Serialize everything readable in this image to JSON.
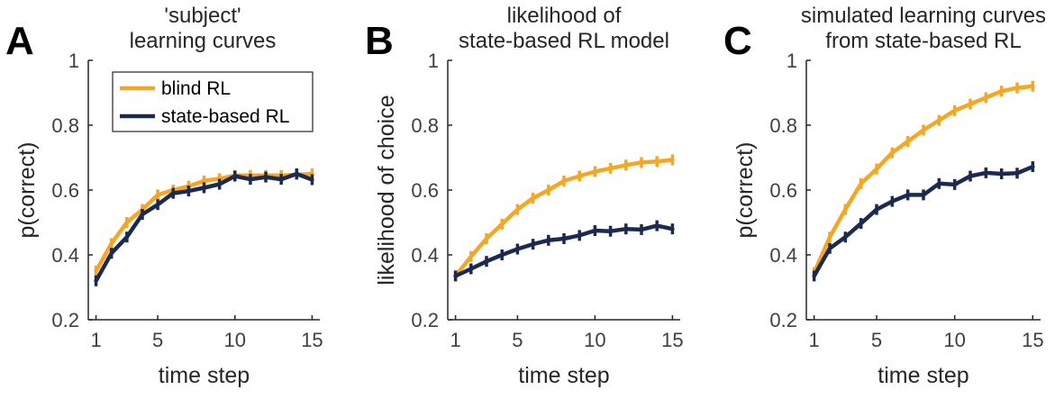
{
  "colors": {
    "blind_rl": "#F5A623",
    "state_based_rl": "#1B2A4E",
    "axis": "#262626",
    "tick": "#404040"
  },
  "chart_data": [
    {
      "type": "line",
      "panel_letter": "A",
      "title_lines": [
        "'subject'",
        "learning curves"
      ],
      "xlabel": "time step",
      "ylabel": "p(correct)",
      "xlim": [
        0.5,
        15.5
      ],
      "ylim": [
        0.2,
        1.0
      ],
      "xticks": [
        1,
        5,
        10,
        15
      ],
      "yticks": [
        0.2,
        0.4,
        0.6,
        0.8,
        1.0
      ],
      "ytick_labels": [
        "0.2",
        "0.4",
        "0.6",
        "0.8",
        "1"
      ],
      "grid": false,
      "legend": {
        "placement": "top-left",
        "entries": [
          "blind RL",
          "state-based RL"
        ]
      },
      "x": [
        1,
        2,
        3,
        4,
        5,
        6,
        7,
        8,
        9,
        10,
        11,
        12,
        13,
        14,
        15
      ],
      "series": [
        {
          "name": "blind RL",
          "color_key": "blind_rl",
          "values": [
            0.35,
            0.435,
            0.5,
            0.54,
            0.585,
            0.6,
            0.612,
            0.628,
            0.635,
            0.645,
            0.645,
            0.645,
            0.645,
            0.647,
            0.65
          ]
        },
        {
          "name": "state-based RL",
          "color_key": "state_based_rl",
          "values": [
            0.32,
            0.405,
            0.455,
            0.525,
            0.555,
            0.59,
            0.597,
            0.607,
            0.618,
            0.643,
            0.633,
            0.64,
            0.633,
            0.65,
            0.632
          ]
        }
      ]
    },
    {
      "type": "line",
      "panel_letter": "B",
      "title_lines": [
        "likelihood of",
        "state-based RL model"
      ],
      "xlabel": "time step",
      "ylabel": "likelihood of choice",
      "xlim": [
        0.5,
        15.5
      ],
      "ylim": [
        0.2,
        1.0
      ],
      "xticks": [
        1,
        5,
        10,
        15
      ],
      "yticks": [
        0.2,
        0.4,
        0.6,
        0.8,
        1.0
      ],
      "ytick_labels": [
        "0.2",
        "0.4",
        "0.6",
        "0.8",
        "1"
      ],
      "grid": false,
      "x": [
        1,
        2,
        3,
        4,
        5,
        6,
        7,
        8,
        9,
        10,
        11,
        12,
        13,
        14,
        15
      ],
      "series": [
        {
          "name": "blind RL",
          "color_key": "blind_rl",
          "values": [
            0.335,
            0.395,
            0.45,
            0.495,
            0.54,
            0.575,
            0.6,
            0.628,
            0.643,
            0.657,
            0.667,
            0.677,
            0.685,
            0.688,
            0.693
          ]
        },
        {
          "name": "state-based RL",
          "color_key": "state_based_rl",
          "values": [
            0.335,
            0.357,
            0.38,
            0.4,
            0.418,
            0.433,
            0.445,
            0.45,
            0.46,
            0.475,
            0.473,
            0.48,
            0.478,
            0.49,
            0.48
          ]
        }
      ]
    },
    {
      "type": "line",
      "panel_letter": "C",
      "title_lines": [
        "simulated learning curves",
        "from state-based RL"
      ],
      "xlabel": "time step",
      "ylabel": "p(correct)",
      "xlim": [
        0.5,
        15.5
      ],
      "ylim": [
        0.2,
        1.0
      ],
      "xticks": [
        1,
        5,
        10,
        15
      ],
      "yticks": [
        0.2,
        0.4,
        0.6,
        0.8,
        1.0
      ],
      "ytick_labels": [
        "0.2",
        "0.4",
        "0.6",
        "0.8",
        "1"
      ],
      "grid": false,
      "x": [
        1,
        2,
        3,
        4,
        5,
        6,
        7,
        8,
        9,
        10,
        11,
        12,
        13,
        14,
        15
      ],
      "series": [
        {
          "name": "blind RL",
          "color_key": "blind_rl",
          "values": [
            0.345,
            0.455,
            0.54,
            0.62,
            0.665,
            0.715,
            0.75,
            0.785,
            0.815,
            0.845,
            0.865,
            0.885,
            0.905,
            0.915,
            0.92
          ]
        },
        {
          "name": "state-based RL",
          "color_key": "state_based_rl",
          "values": [
            0.335,
            0.42,
            0.455,
            0.497,
            0.54,
            0.565,
            0.585,
            0.585,
            0.62,
            0.617,
            0.643,
            0.653,
            0.65,
            0.652,
            0.672
          ]
        }
      ]
    }
  ]
}
